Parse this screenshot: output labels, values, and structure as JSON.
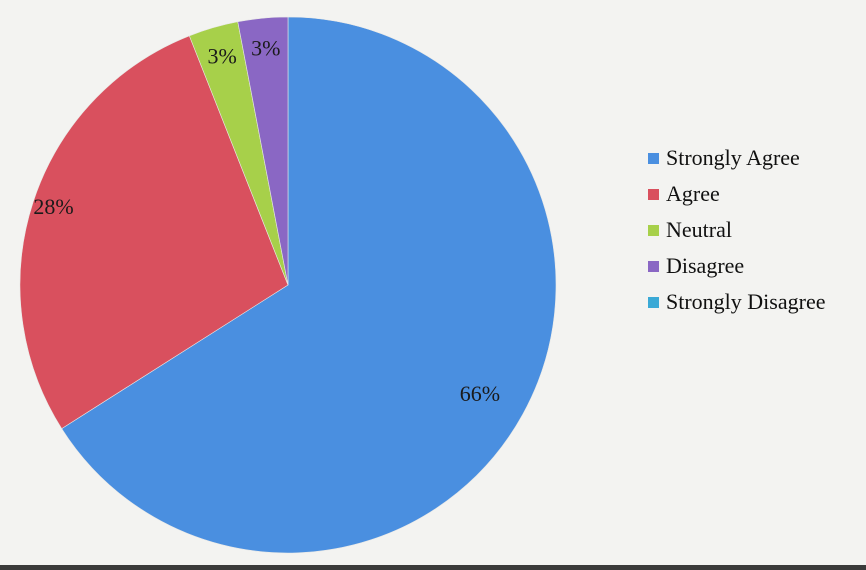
{
  "chart_data": {
    "type": "pie",
    "slices": [
      {
        "label": "Strongly Agree",
        "value": 66,
        "value_label": "66%",
        "color": "#4a8fe0"
      },
      {
        "label": "Agree",
        "value": 28,
        "value_label": "28%",
        "color": "#d9505e"
      },
      {
        "label": "Neutral",
        "value": 3,
        "value_label": "3%",
        "color": "#a7d04a"
      },
      {
        "label": "Disagree",
        "value": 3,
        "value_label": "3%",
        "color": "#8a67c4"
      },
      {
        "label": "Strongly Disagree",
        "value": 0,
        "value_label": "",
        "color": "#3aa9d6"
      }
    ],
    "legend": {
      "position": "right",
      "entries": [
        "Strongly Agree",
        "Agree",
        "Neutral",
        "Disagree",
        "Strongly Disagree"
      ]
    },
    "start_angle": "12 o'clock",
    "direction": "clockwise"
  }
}
